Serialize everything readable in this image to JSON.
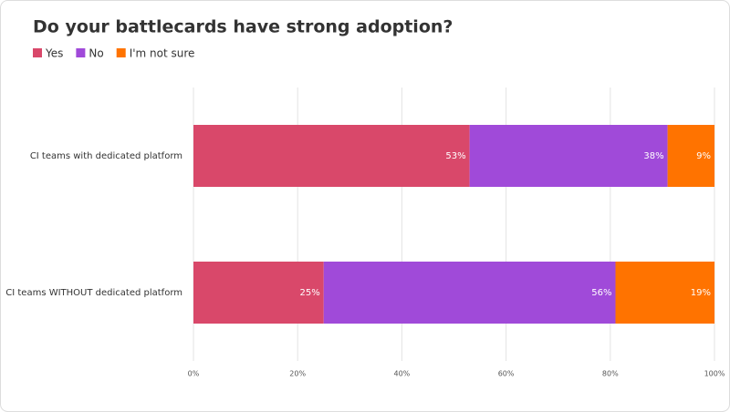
{
  "chart_data": {
    "type": "stacked-bar-horizontal",
    "title": "Do your battlecards have strong adoption?",
    "categories": [
      "CI teams with dedicated platform",
      "CI teams WITHOUT dedicated platform"
    ],
    "series": [
      {
        "name": "Yes",
        "color": "#d9486a",
        "values": [
          53,
          25
        ],
        "value_labels": [
          "53%",
          "25%"
        ]
      },
      {
        "name": "No",
        "color": "#a04ad9",
        "values": [
          38,
          56
        ],
        "value_labels": [
          "38%",
          "56%"
        ]
      },
      {
        "name": "I'm not sure",
        "color": "#ff7300",
        "values": [
          9,
          19
        ],
        "value_labels": [
          "9%",
          "19%"
        ]
      }
    ],
    "xlim": [
      0,
      100
    ],
    "xticks": [
      {
        "value": 0,
        "label": "0%"
      },
      {
        "value": 20,
        "label": "20%"
      },
      {
        "value": 40,
        "label": "40%"
      },
      {
        "value": 60,
        "label": "60%"
      },
      {
        "value": 80,
        "label": "80%"
      },
      {
        "value": 100,
        "label": "100%"
      }
    ],
    "grid": true,
    "legend": "top-left"
  }
}
